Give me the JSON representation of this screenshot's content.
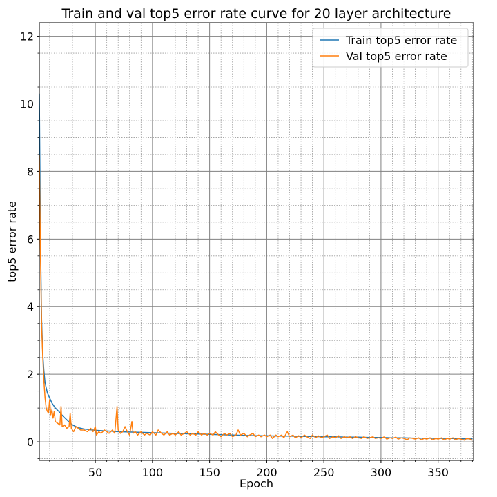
{
  "chart_data": {
    "type": "line",
    "title": "Train and val top5 error rate curve for 20 layer architecture",
    "xlabel": "Epoch",
    "ylabel": "top5 error rate",
    "xlim": [
      1,
      381
    ],
    "ylim": [
      -0.55,
      12.4
    ],
    "xticks": [
      50,
      100,
      150,
      200,
      250,
      300,
      350
    ],
    "yticks": [
      0,
      2,
      4,
      6,
      8,
      10,
      12
    ],
    "grid": true,
    "legend_position": "top-right",
    "series": [
      {
        "name": "Train top5 error rate",
        "color": "#1f77b4",
        "points": [
          [
            1,
            10.3
          ],
          [
            2,
            6.0
          ],
          [
            3,
            3.6
          ],
          [
            4,
            2.6
          ],
          [
            5,
            2.1
          ],
          [
            6,
            1.75
          ],
          [
            8,
            1.45
          ],
          [
            10,
            1.3
          ],
          [
            12,
            1.15
          ],
          [
            15,
            1.0
          ],
          [
            18,
            0.9
          ],
          [
            22,
            0.75
          ],
          [
            26,
            0.62
          ],
          [
            30,
            0.5
          ],
          [
            35,
            0.42
          ],
          [
            40,
            0.38
          ],
          [
            45,
            0.36
          ],
          [
            50,
            0.34
          ],
          [
            55,
            0.33
          ],
          [
            60,
            0.32
          ],
          [
            70,
            0.3
          ],
          [
            80,
            0.29
          ],
          [
            90,
            0.28
          ],
          [
            100,
            0.27
          ],
          [
            110,
            0.26
          ],
          [
            120,
            0.25
          ],
          [
            130,
            0.24
          ],
          [
            140,
            0.23
          ],
          [
            150,
            0.22
          ],
          [
            160,
            0.21
          ],
          [
            170,
            0.2
          ],
          [
            180,
            0.19
          ],
          [
            190,
            0.18
          ],
          [
            200,
            0.18
          ],
          [
            210,
            0.17
          ],
          [
            220,
            0.17
          ],
          [
            230,
            0.16
          ],
          [
            240,
            0.16
          ],
          [
            250,
            0.15
          ],
          [
            260,
            0.15
          ],
          [
            270,
            0.14
          ],
          [
            280,
            0.14
          ],
          [
            290,
            0.13
          ],
          [
            300,
            0.13
          ],
          [
            310,
            0.12
          ],
          [
            320,
            0.12
          ],
          [
            330,
            0.11
          ],
          [
            340,
            0.11
          ],
          [
            350,
            0.1
          ],
          [
            360,
            0.1
          ],
          [
            370,
            0.09
          ],
          [
            380,
            0.09
          ]
        ]
      },
      {
        "name": "Val top5 error rate",
        "color": "#ff7f0e",
        "points": [
          [
            1,
            8.5
          ],
          [
            2,
            5.5
          ],
          [
            3,
            3.4
          ],
          [
            4,
            2.5
          ],
          [
            5,
            1.8
          ],
          [
            6,
            1.3
          ],
          [
            7,
            1.0
          ],
          [
            8,
            0.9
          ],
          [
            9,
            0.85
          ],
          [
            10,
            1.25
          ],
          [
            11,
            0.8
          ],
          [
            12,
            0.95
          ],
          [
            13,
            0.7
          ],
          [
            14,
            0.9
          ],
          [
            15,
            0.6
          ],
          [
            17,
            0.55
          ],
          [
            19,
            0.5
          ],
          [
            20,
            1.05
          ],
          [
            21,
            0.45
          ],
          [
            23,
            0.5
          ],
          [
            25,
            0.4
          ],
          [
            27,
            0.45
          ],
          [
            28,
            0.85
          ],
          [
            29,
            0.4
          ],
          [
            31,
            0.3
          ],
          [
            33,
            0.45
          ],
          [
            35,
            0.4
          ],
          [
            37,
            0.35
          ],
          [
            40,
            0.35
          ],
          [
            43,
            0.3
          ],
          [
            46,
            0.4
          ],
          [
            48,
            0.3
          ],
          [
            50,
            0.45
          ],
          [
            51,
            0.2
          ],
          [
            53,
            0.3
          ],
          [
            55,
            0.25
          ],
          [
            58,
            0.35
          ],
          [
            60,
            0.3
          ],
          [
            62,
            0.25
          ],
          [
            65,
            0.35
          ],
          [
            67,
            0.25
          ],
          [
            69,
            1.05
          ],
          [
            70,
            0.35
          ],
          [
            72,
            0.25
          ],
          [
            74,
            0.3
          ],
          [
            76,
            0.45
          ],
          [
            78,
            0.3
          ],
          [
            80,
            0.2
          ],
          [
            82,
            0.6
          ],
          [
            83,
            0.25
          ],
          [
            85,
            0.3
          ],
          [
            87,
            0.2
          ],
          [
            90,
            0.3
          ],
          [
            93,
            0.2
          ],
          [
            95,
            0.25
          ],
          [
            98,
            0.2
          ],
          [
            100,
            0.3
          ],
          [
            103,
            0.2
          ],
          [
            105,
            0.35
          ],
          [
            108,
            0.25
          ],
          [
            110,
            0.2
          ],
          [
            113,
            0.3
          ],
          [
            115,
            0.2
          ],
          [
            118,
            0.25
          ],
          [
            120,
            0.2
          ],
          [
            123,
            0.3
          ],
          [
            125,
            0.2
          ],
          [
            128,
            0.25
          ],
          [
            130,
            0.3
          ],
          [
            133,
            0.2
          ],
          [
            135,
            0.25
          ],
          [
            138,
            0.2
          ],
          [
            140,
            0.3
          ],
          [
            143,
            0.2
          ],
          [
            145,
            0.25
          ],
          [
            148,
            0.2
          ],
          [
            150,
            0.25
          ],
          [
            153,
            0.2
          ],
          [
            155,
            0.3
          ],
          [
            158,
            0.2
          ],
          [
            160,
            0.15
          ],
          [
            163,
            0.25
          ],
          [
            165,
            0.2
          ],
          [
            168,
            0.25
          ],
          [
            170,
            0.15
          ],
          [
            173,
            0.2
          ],
          [
            175,
            0.35
          ],
          [
            177,
            0.2
          ],
          [
            180,
            0.25
          ],
          [
            183,
            0.15
          ],
          [
            185,
            0.2
          ],
          [
            188,
            0.25
          ],
          [
            190,
            0.15
          ],
          [
            193,
            0.2
          ],
          [
            195,
            0.15
          ],
          [
            198,
            0.2
          ],
          [
            200,
            0.15
          ],
          [
            203,
            0.2
          ],
          [
            205,
            0.1
          ],
          [
            208,
            0.2
          ],
          [
            210,
            0.15
          ],
          [
            213,
            0.2
          ],
          [
            215,
            0.12
          ],
          [
            218,
            0.3
          ],
          [
            220,
            0.15
          ],
          [
            223,
            0.2
          ],
          [
            225,
            0.12
          ],
          [
            228,
            0.18
          ],
          [
            230,
            0.12
          ],
          [
            233,
            0.2
          ],
          [
            235,
            0.15
          ],
          [
            238,
            0.1
          ],
          [
            240,
            0.2
          ],
          [
            243,
            0.12
          ],
          [
            245,
            0.18
          ],
          [
            248,
            0.12
          ],
          [
            250,
            0.15
          ],
          [
            253,
            0.2
          ],
          [
            255,
            0.1
          ],
          [
            258,
            0.15
          ],
          [
            260,
            0.12
          ],
          [
            263,
            0.18
          ],
          [
            265,
            0.1
          ],
          [
            268,
            0.15
          ],
          [
            270,
            0.12
          ],
          [
            273,
            0.15
          ],
          [
            275,
            0.1
          ],
          [
            278,
            0.15
          ],
          [
            280,
            0.12
          ],
          [
            283,
            0.1
          ],
          [
            285,
            0.15
          ],
          [
            288,
            0.1
          ],
          [
            290,
            0.12
          ],
          [
            293,
            0.15
          ],
          [
            295,
            0.1
          ],
          [
            298,
            0.12
          ],
          [
            300,
            0.1
          ],
          [
            303,
            0.15
          ],
          [
            305,
            0.08
          ],
          [
            308,
            0.12
          ],
          [
            310,
            0.1
          ],
          [
            313,
            0.14
          ],
          [
            315,
            0.08
          ],
          [
            318,
            0.12
          ],
          [
            320,
            0.1
          ],
          [
            323,
            0.06
          ],
          [
            325,
            0.12
          ],
          [
            328,
            0.1
          ],
          [
            330,
            0.08
          ],
          [
            333,
            0.12
          ],
          [
            335,
            0.06
          ],
          [
            338,
            0.1
          ],
          [
            340,
            0.08
          ],
          [
            343,
            0.12
          ],
          [
            345,
            0.06
          ],
          [
            348,
            0.1
          ],
          [
            350,
            0.08
          ],
          [
            353,
            0.12
          ],
          [
            355,
            0.06
          ],
          [
            358,
            0.1
          ],
          [
            360,
            0.08
          ],
          [
            363,
            0.12
          ],
          [
            365,
            0.06
          ],
          [
            368,
            0.1
          ],
          [
            370,
            0.08
          ],
          [
            373,
            0.05
          ],
          [
            375,
            0.1
          ],
          [
            378,
            0.08
          ],
          [
            380,
            0.05
          ]
        ]
      }
    ]
  }
}
